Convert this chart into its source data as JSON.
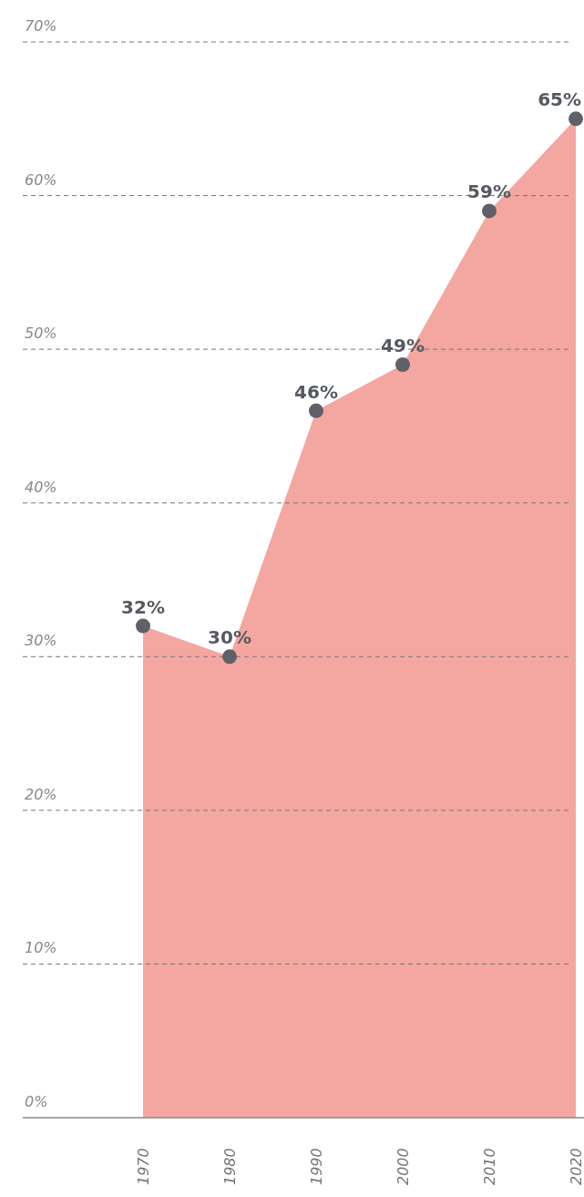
{
  "chart_data": {
    "type": "area",
    "categories": [
      "1970",
      "1980",
      "1990",
      "2000",
      "2010",
      "2020"
    ],
    "series": [
      {
        "color": "#f4a6a0",
        "values": [
          32,
          30,
          46,
          49,
          59,
          65
        ],
        "value_labels": [
          "32%",
          "30%",
          "46%",
          "49%",
          "59%",
          "65%"
        ]
      }
    ],
    "ylim": [
      0,
      70
    ],
    "yticks": [
      {
        "value": 0,
        "label": "0%"
      },
      {
        "value": 10,
        "label": "10%"
      },
      {
        "value": 20,
        "label": "20%"
      },
      {
        "value": 30,
        "label": "30%"
      },
      {
        "value": 40,
        "label": "40%"
      },
      {
        "value": 50,
        "label": "50%"
      },
      {
        "value": 60,
        "label": "60%"
      },
      {
        "value": 70,
        "label": "70%"
      }
    ],
    "grid": "y",
    "marker": "circle"
  }
}
